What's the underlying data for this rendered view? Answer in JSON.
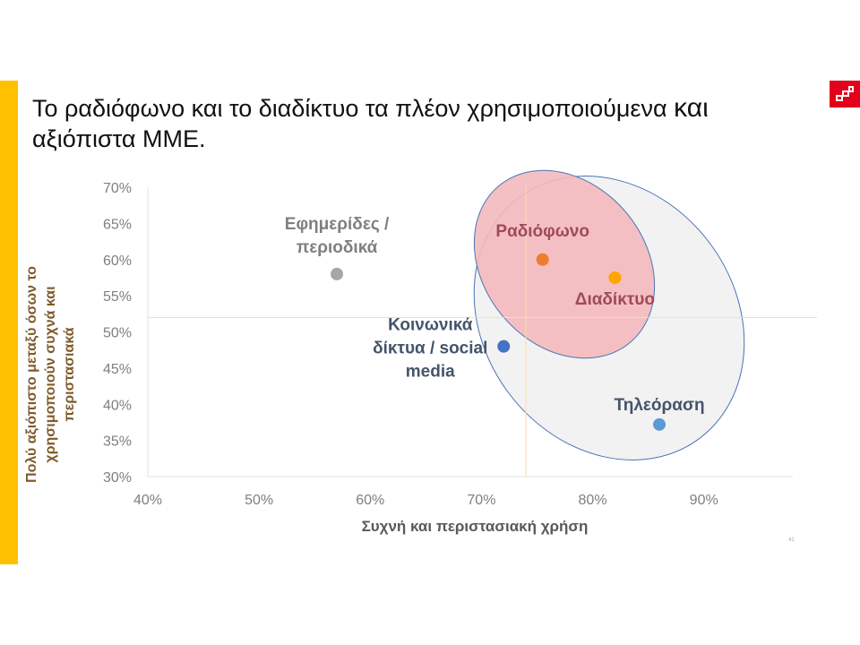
{
  "slide": {
    "title_main": "Το ραδιόφωνο και το διαδίκτυο τα πλέον χρησιμοποιούμενα",
    "title_emph": "και",
    "title_line2": "αξιόπιστα ΜΜΕ.",
    "page_number": "41"
  },
  "colors": {
    "accent": "#FFC000",
    "logo": "#E2001A",
    "label_text": "#9E4A5A",
    "ellipse_pink_fill": "#F4B9BD",
    "ellipse_gray_fill": "#F2F2F2",
    "ellipse_stroke": "#4A74B8"
  },
  "chart_data": {
    "type": "scatter",
    "xlabel": "Συχνή και περιστασιακή χρήση",
    "ylabel_lines": [
      "Πολύ αξιόπιστο μεταξύ όσων το",
      "χρησιμοποιούν συχνά και",
      "περιστασιακά"
    ],
    "xlim": [
      40,
      98
    ],
    "ylim": [
      30,
      70
    ],
    "x_ticks": [
      40,
      50,
      60,
      70,
      80,
      90
    ],
    "x_tick_labels": [
      "40%",
      "50%",
      "60%",
      "70%",
      "80%",
      "90%"
    ],
    "y_ticks": [
      30,
      35,
      40,
      45,
      50,
      55,
      60,
      65,
      70
    ],
    "y_tick_labels": [
      "30%",
      "35%",
      "40%",
      "45%",
      "50%",
      "55%",
      "60%",
      "65%",
      "70%"
    ],
    "reference_lines": {
      "x": 74,
      "y": 52
    },
    "points": [
      {
        "lines": [
          "Εφημερίδες /",
          "περιοδικά"
        ],
        "x": 57,
        "y": 58,
        "color": "#A6A6A6",
        "label_color": "#7F7F7F",
        "label_pos": "above"
      },
      {
        "lines": [
          "Ραδιόφωνο"
        ],
        "x": 75.5,
        "y": 60,
        "color": "#ED7D31",
        "label_color": "#9E4A5A",
        "label_pos": "above"
      },
      {
        "lines": [
          "Διαδίκτυο"
        ],
        "x": 82,
        "y": 57.5,
        "color": "#FFA500",
        "label_color": "#9E4A5A",
        "label_pos": "below"
      },
      {
        "lines": [
          "Κοινωνικά",
          "δίκτυα / social",
          "media"
        ],
        "x": 72,
        "y": 48,
        "color": "#4472C4",
        "label_color": "#44546A",
        "label_pos": "left"
      },
      {
        "lines": [
          "Τηλεόραση"
        ],
        "x": 86,
        "y": 37.2,
        "color": "#5B9BD5",
        "label_color": "#44546A",
        "label_pos": "above-left"
      }
    ]
  }
}
